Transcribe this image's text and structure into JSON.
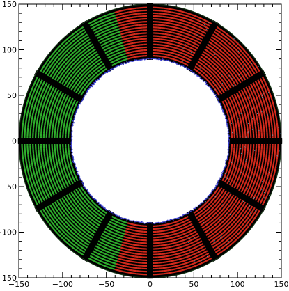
{
  "chart_data": {
    "type": "scatter",
    "title": "",
    "xlabel": "",
    "ylabel": "",
    "xlim": [
      -150,
      150
    ],
    "ylim": [
      -150,
      150
    ],
    "grid": false,
    "x_ticks": [
      -150,
      -100,
      -50,
      0,
      50,
      100,
      150
    ],
    "y_ticks": [
      -150,
      -100,
      -50,
      0,
      50,
      100,
      150
    ],
    "x_tick_labels": [
      "−150",
      "−100",
      "−50",
      "0",
      "50",
      "100",
      "150"
    ],
    "y_tick_labels": [
      "−150",
      "−100",
      "−50",
      "0",
      "50",
      "100",
      "150"
    ],
    "annulus": {
      "inner_radius": 90,
      "outer_radius": 150,
      "ring_count": 18
    },
    "gap_angles_deg": [
      0,
      30,
      60,
      90,
      120,
      150,
      180,
      210,
      240,
      270,
      300,
      330
    ],
    "series": [
      {
        "color": "#d42a1c"
      },
      {
        "color": "#2fae2c"
      },
      {
        "color": "#3a3fd0"
      },
      {
        "color": "#5cc8e6"
      },
      {
        "color": "#000000"
      }
    ]
  }
}
